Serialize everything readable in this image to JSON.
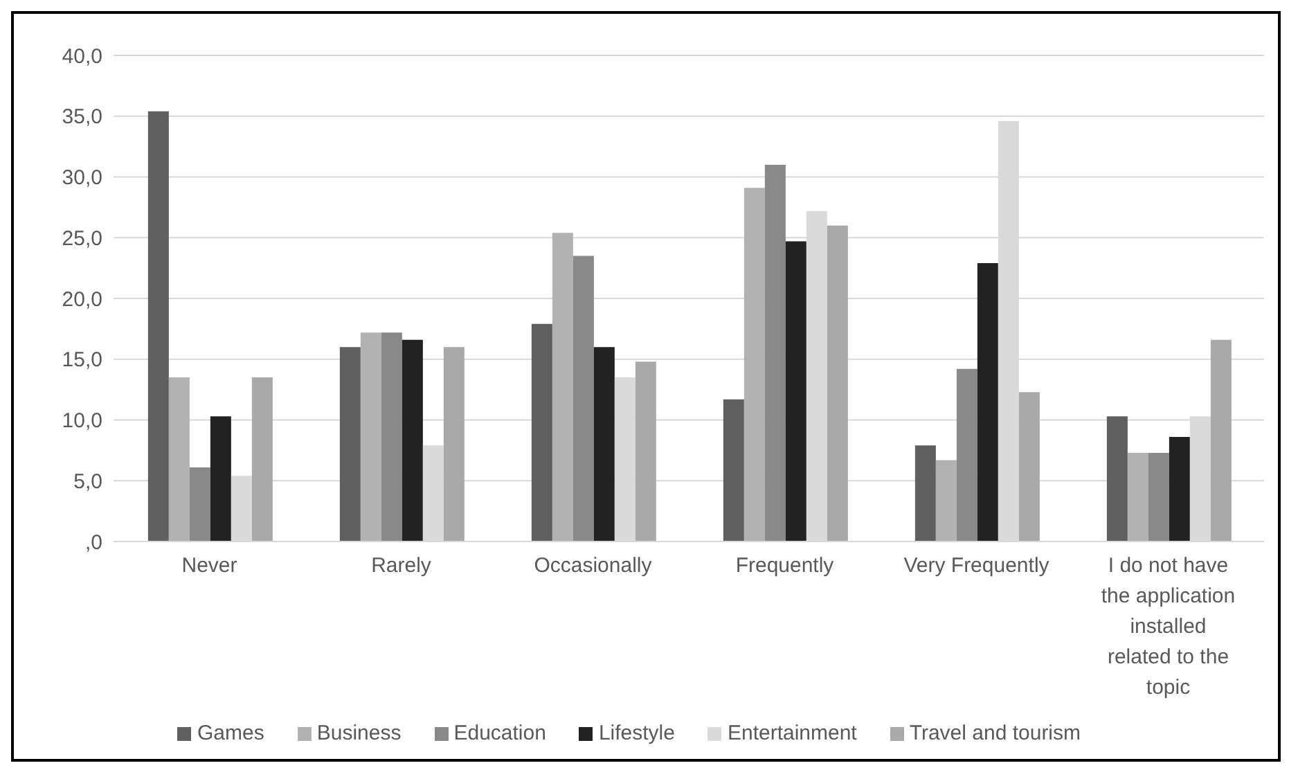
{
  "chart_data": {
    "type": "bar",
    "categories": [
      "Never",
      "Rarely",
      "Occasionally",
      "Frequently",
      "Very Frequently",
      "I do not have the application installed related to the topic"
    ],
    "series": [
      {
        "name": "Games",
        "color": "#5f5f5f",
        "values": [
          35.4,
          16.0,
          17.9,
          11.7,
          7.9,
          10.3
        ]
      },
      {
        "name": "Business",
        "color": "#b2b2b2",
        "values": [
          13.5,
          17.2,
          25.4,
          29.1,
          6.7,
          7.3
        ]
      },
      {
        "name": "Education",
        "color": "#898989",
        "values": [
          6.1,
          17.2,
          23.5,
          31.0,
          14.2,
          7.3
        ]
      },
      {
        "name": "Lifestyle",
        "color": "#222222",
        "values": [
          10.3,
          16.6,
          16.0,
          24.7,
          22.9,
          8.6
        ]
      },
      {
        "name": "Entertainment",
        "color": "#dadada",
        "values": [
          5.4,
          7.9,
          13.5,
          27.2,
          34.6,
          10.3
        ]
      },
      {
        "name": "Travel and tourism",
        "color": "#a9a9a9",
        "values": [
          13.5,
          16.0,
          14.8,
          26.0,
          12.3,
          16.6
        ]
      }
    ],
    "ylim": [
      0,
      40
    ],
    "yticks": [
      {
        "value": 0,
        "label": ",0"
      },
      {
        "value": 5,
        "label": "5,0"
      },
      {
        "value": 10,
        "label": "10,0"
      },
      {
        "value": 15,
        "label": "15,0"
      },
      {
        "value": 20,
        "label": "20,0"
      },
      {
        "value": 25,
        "label": "25,0"
      },
      {
        "value": 30,
        "label": "30,0"
      },
      {
        "value": 35,
        "label": "35,0"
      },
      {
        "value": 40,
        "label": "40,0"
      }
    ],
    "grid": "y",
    "legend": "bottom"
  }
}
